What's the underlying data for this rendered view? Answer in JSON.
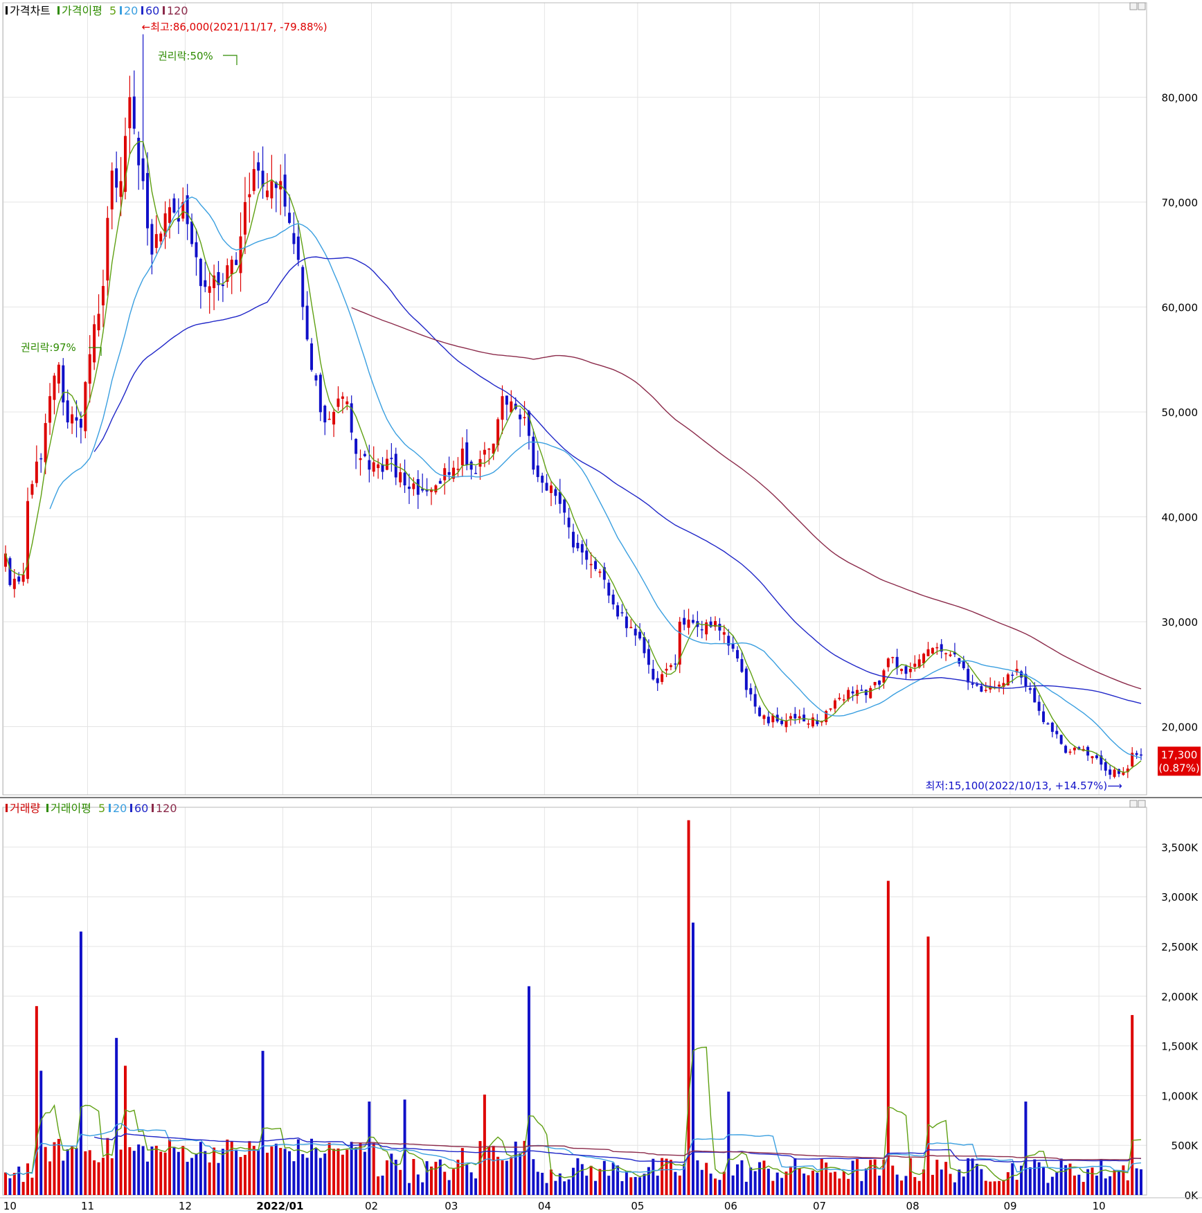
{
  "chart_data": {
    "type": "candlestick",
    "price_panel": {
      "legend": [
        {
          "text": "가격차트",
          "color": "#000000"
        },
        {
          "text": "가격이평",
          "color": "#2e8b00"
        },
        {
          "text": "5",
          "color": "#5fa012"
        },
        {
          "text": "20",
          "color": "#3a9fe0"
        },
        {
          "text": "60",
          "color": "#2027c8"
        },
        {
          "text": "120",
          "color": "#8b2a4a"
        }
      ],
      "y_ticks": [
        "20,000",
        "30,000",
        "40,000",
        "50,000",
        "60,000",
        "70,000",
        "80,000"
      ],
      "y_tick_values": [
        20000,
        30000,
        40000,
        50000,
        60000,
        70000,
        80000
      ],
      "ylim": [
        13500,
        89000
      ],
      "annotations": {
        "high": "←최고:86,000(2021/11/17, -79.88%)",
        "low": "최저:15,100(2022/10/13, +14.57%)⟶",
        "rights1": "권리락:97%",
        "rights2": "권리락:50%"
      },
      "last_price": "17,300",
      "last_change": "(0.87%)"
    },
    "volume_panel": {
      "legend": [
        {
          "text": "거래량",
          "color": "#cc0000"
        },
        {
          "text": "거래이평",
          "color": "#2e8b00"
        },
        {
          "text": "5",
          "color": "#5fa012"
        },
        {
          "text": "20",
          "color": "#3a9fe0"
        },
        {
          "text": "60",
          "color": "#2027c8"
        },
        {
          "text": "120",
          "color": "#8b2a4a"
        }
      ],
      "y_ticks": [
        "0K",
        "500K",
        "1,000K",
        "1,500K",
        "2,000K",
        "2,500K",
        "3,000K",
        "3,500K"
      ],
      "y_tick_values": [
        0,
        500,
        1000,
        1500,
        2000,
        2500,
        3000,
        3500
      ],
      "ylim": [
        0,
        3900
      ]
    },
    "x_labels": [
      "10",
      "11",
      "12",
      "2022/01",
      "02",
      "03",
      "04",
      "05",
      "06",
      "07",
      "08",
      "09",
      "10"
    ],
    "x_label_dates": [
      "2021-10-01",
      "2021-11-01",
      "2021-12-01",
      "2022-01-03",
      "2022-02-03",
      "2022-03-02",
      "2022-04-01",
      "2022-05-02",
      "2022-06-02",
      "2022-07-01",
      "2022-08-01",
      "2022-09-01",
      "2022-10-04"
    ],
    "close_anchors": [
      [
        "2021-10-01",
        36500
      ],
      [
        "2021-10-05",
        33500
      ],
      [
        "2021-10-08",
        34500
      ],
      [
        "2021-10-12",
        41500
      ],
      [
        "2021-10-15",
        45500
      ],
      [
        "2021-10-19",
        51500
      ],
      [
        "2021-10-21",
        54500
      ],
      [
        "2021-10-25",
        49000
      ],
      [
        "2021-10-28",
        48500
      ],
      [
        "2021-11-01",
        55500
      ],
      [
        "2021-11-04",
        62000
      ],
      [
        "2021-11-08",
        73000
      ],
      [
        "2021-11-10",
        72000
      ],
      [
        "2021-11-12",
        80000
      ],
      [
        "2021-11-15",
        77000
      ],
      [
        "2021-11-17",
        72000
      ],
      [
        "2021-11-19",
        65000
      ],
      [
        "2021-11-23",
        67000
      ],
      [
        "2021-11-26",
        69000
      ],
      [
        "2021-11-30",
        70000
      ],
      [
        "2021-12-02",
        66000
      ],
      [
        "2021-12-06",
        62000
      ],
      [
        "2021-12-09",
        63000
      ],
      [
        "2021-12-13",
        62000
      ],
      [
        "2021-12-16",
        64000
      ],
      [
        "2021-12-20",
        70000
      ],
      [
        "2021-12-23",
        73000
      ],
      [
        "2021-12-28",
        72000
      ],
      [
        "2021-12-30",
        72000
      ],
      [
        "2022-01-05",
        66000
      ],
      [
        "2022-01-07",
        60000
      ],
      [
        "2022-01-11",
        54000
      ],
      [
        "2022-01-14",
        49000
      ],
      [
        "2022-01-18",
        50000
      ],
      [
        "2022-01-21",
        51000
      ],
      [
        "2022-01-25",
        46000
      ],
      [
        "2022-01-28",
        44500
      ],
      [
        "2022-02-04",
        45000
      ],
      [
        "2022-02-09",
        45500
      ],
      [
        "2022-02-14",
        43000
      ],
      [
        "2022-02-18",
        42500
      ],
      [
        "2022-02-23",
        43000
      ],
      [
        "2022-02-28",
        44000
      ],
      [
        "2022-03-04",
        46500
      ],
      [
        "2022-03-08",
        44500
      ],
      [
        "2022-03-11",
        45500
      ],
      [
        "2022-03-15",
        46500
      ],
      [
        "2022-03-18",
        51500
      ],
      [
        "2022-03-22",
        51000
      ],
      [
        "2022-03-25",
        49500
      ],
      [
        "2022-03-29",
        44500
      ],
      [
        "2022-04-01",
        42500
      ],
      [
        "2022-04-05",
        42000
      ],
      [
        "2022-04-08",
        39000
      ],
      [
        "2022-04-12",
        37000
      ],
      [
        "2022-04-15",
        35500
      ],
      [
        "2022-04-20",
        34000
      ],
      [
        "2022-04-25",
        30500
      ],
      [
        "2022-04-28",
        29500
      ],
      [
        "2022-05-03",
        27000
      ],
      [
        "2022-05-06",
        24500
      ],
      [
        "2022-05-10",
        25000
      ],
      [
        "2022-05-13",
        26000
      ],
      [
        "2022-05-16",
        30000
      ],
      [
        "2022-05-20",
        29500
      ],
      [
        "2022-05-25",
        29500
      ],
      [
        "2022-05-30",
        29000
      ],
      [
        "2022-06-03",
        26500
      ],
      [
        "2022-06-08",
        23500
      ],
      [
        "2022-06-13",
        21000
      ],
      [
        "2022-06-17",
        20500
      ],
      [
        "2022-06-22",
        21000
      ],
      [
        "2022-06-27",
        20500
      ],
      [
        "2022-07-01",
        20500
      ],
      [
        "2022-07-06",
        22500
      ],
      [
        "2022-07-11",
        23500
      ],
      [
        "2022-07-15",
        23000
      ],
      [
        "2022-07-20",
        24000
      ],
      [
        "2022-07-22",
        26500
      ],
      [
        "2022-07-27",
        25500
      ],
      [
        "2022-08-01",
        26000
      ],
      [
        "2022-08-05",
        27500
      ],
      [
        "2022-08-10",
        27000
      ],
      [
        "2022-08-16",
        26000
      ],
      [
        "2022-08-19",
        24000
      ],
      [
        "2022-08-24",
        23500
      ],
      [
        "2022-08-29",
        24000
      ],
      [
        "2022-09-02",
        25500
      ],
      [
        "2022-09-07",
        23500
      ],
      [
        "2022-09-13",
        21500
      ],
      [
        "2022-09-16",
        19500
      ],
      [
        "2022-09-21",
        17500
      ],
      [
        "2022-09-26",
        17800
      ],
      [
        "2022-09-30",
        17000
      ],
      [
        "2022-10-05",
        15800
      ],
      [
        "2022-10-11",
        15500
      ],
      [
        "2022-10-13",
        16000
      ],
      [
        "2022-10-14",
        17500
      ],
      [
        "2022-10-17",
        17300
      ],
      [
        "2022-10-18",
        17300
      ]
    ],
    "volume_spikes": [
      [
        "2021-10-14",
        1900
      ],
      [
        "2021-10-15",
        1250
      ],
      [
        "2021-10-28",
        2650
      ],
      [
        "2021-11-09",
        1580
      ],
      [
        "2021-11-11",
        1300
      ],
      [
        "2021-12-24",
        1450
      ],
      [
        "2022-01-28",
        940
      ],
      [
        "2022-02-14",
        960
      ],
      [
        "2022-03-14",
        1010
      ],
      [
        "2022-03-28",
        2100
      ],
      [
        "2022-05-18",
        3770
      ],
      [
        "2022-05-19",
        2740
      ],
      [
        "2022-05-31",
        1040
      ],
      [
        "2022-07-22",
        3160
      ],
      [
        "2022-08-04",
        2600
      ],
      [
        "2022-09-06",
        940
      ],
      [
        "2022-10-14",
        1810
      ]
    ]
  }
}
